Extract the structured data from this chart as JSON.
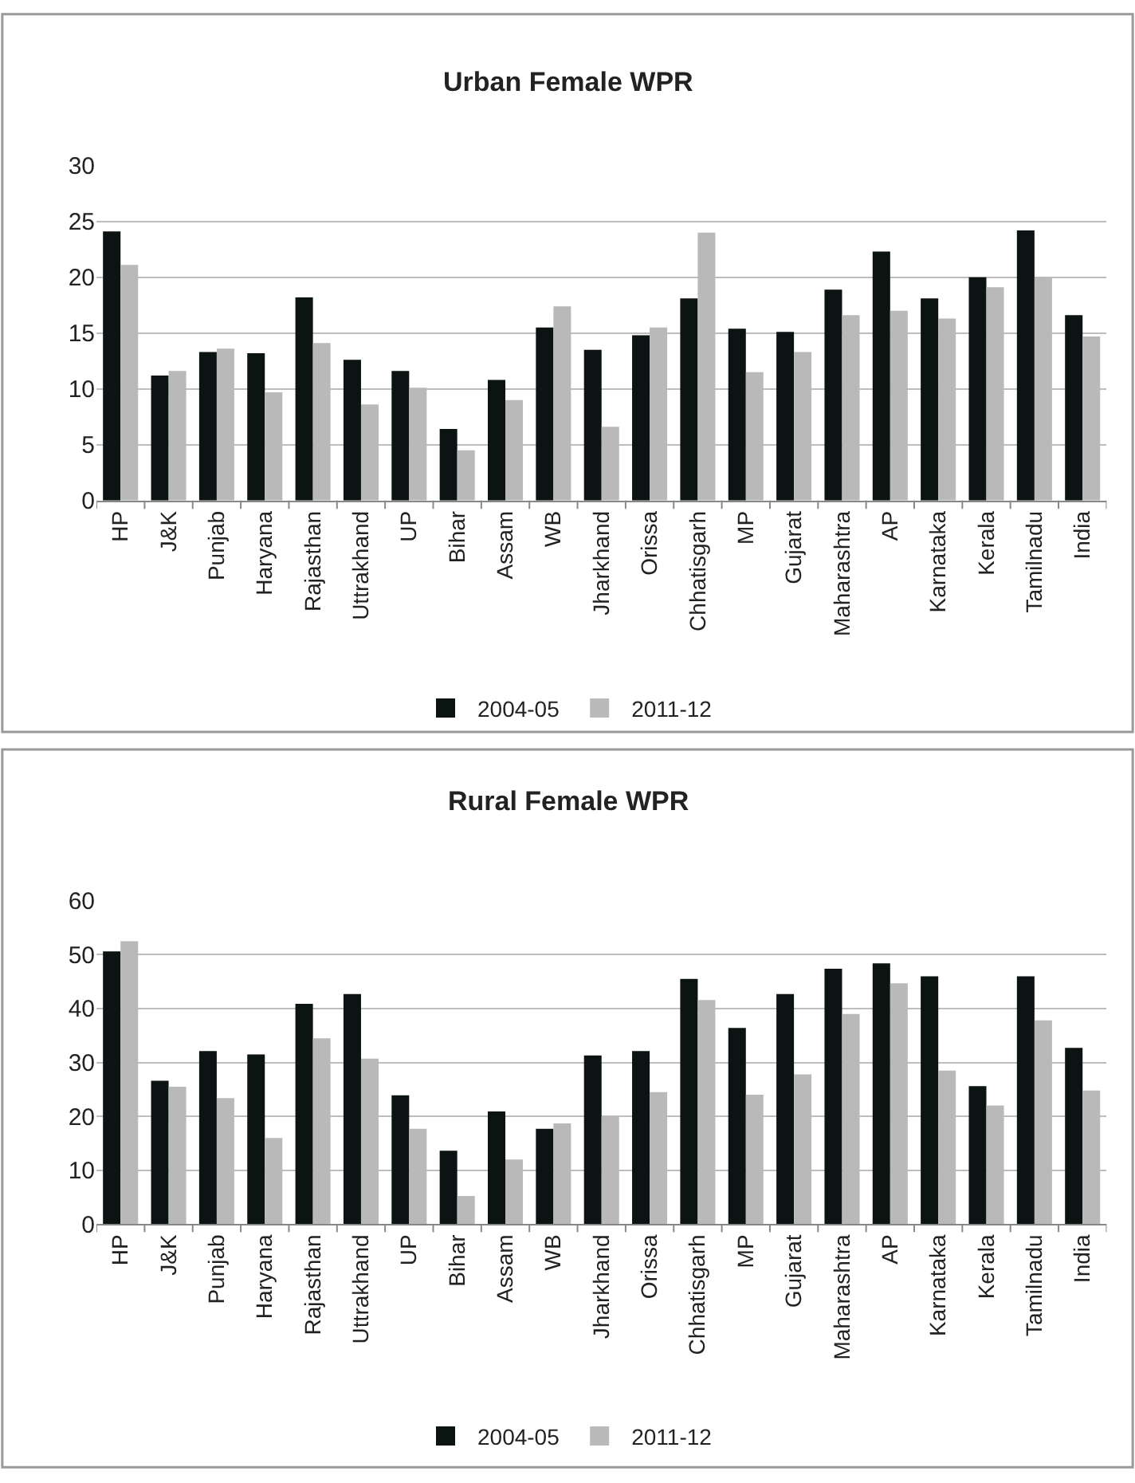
{
  "chart_data": [
    {
      "type": "bar",
      "title": "Urban Female WPR",
      "categories": [
        "HP",
        "J&K",
        "Punjab",
        "Haryana",
        "Rajasthan",
        "Uttrakhand",
        "UP",
        "Bihar",
        "Assam",
        "WB",
        "Jharkhand",
        "Orissa",
        "Chhatisgarh",
        "MP",
        "Gujarat",
        "Maharashtra",
        "AP",
        "Karnataka",
        "Kerala",
        "Tamilnadu",
        "India"
      ],
      "series": [
        {
          "name": "2004-05",
          "color": "#0b1412",
          "values": [
            24.1,
            11.2,
            13.3,
            13.2,
            18.2,
            12.6,
            11.6,
            6.4,
            10.8,
            15.5,
            13.5,
            14.8,
            18.1,
            15.4,
            15.1,
            18.9,
            22.3,
            18.1,
            20.0,
            24.2,
            16.6
          ]
        },
        {
          "name": "2011-12",
          "color": "#b9b9b9",
          "values": [
            21.1,
            11.6,
            13.6,
            9.7,
            14.1,
            8.6,
            10.1,
            4.5,
            9.0,
            17.4,
            6.6,
            15.5,
            24.0,
            11.5,
            13.3,
            16.6,
            17.0,
            16.3,
            19.1,
            20.0,
            14.7
          ]
        }
      ],
      "ylim": [
        0,
        30
      ],
      "yticks": [
        0,
        5,
        10,
        15,
        20,
        25,
        30
      ],
      "grid": "y",
      "legend": "bottom"
    },
    {
      "type": "bar",
      "title": "Rural Female WPR",
      "categories": [
        "HP",
        "J&K",
        "Punjab",
        "Haryana",
        "Rajasthan",
        "Uttrakhand",
        "UP",
        "Bihar",
        "Assam",
        "WB",
        "Jharkhand",
        "Orissa",
        "Chhatisgarh",
        "MP",
        "Gujarat",
        "Maharashtra",
        "AP",
        "Karnataka",
        "Kerala",
        "Tamilnadu",
        "India"
      ],
      "series": [
        {
          "name": "2004-05",
          "color": "#0b1412",
          "values": [
            50.6,
            26.6,
            32.1,
            31.5,
            40.9,
            42.7,
            23.9,
            13.6,
            20.9,
            17.7,
            31.3,
            32.1,
            45.5,
            36.4,
            42.7,
            47.4,
            48.4,
            46.0,
            25.6,
            46.0,
            32.7
          ]
        },
        {
          "name": "2011-12",
          "color": "#b9b9b9",
          "values": [
            52.5,
            25.5,
            23.4,
            16.0,
            34.5,
            30.7,
            17.7,
            5.2,
            12.0,
            18.7,
            20.0,
            24.5,
            41.6,
            24.0,
            27.8,
            39.0,
            44.7,
            28.5,
            22.0,
            37.8,
            24.8
          ]
        }
      ],
      "ylim": [
        0,
        60
      ],
      "yticks": [
        0,
        10,
        20,
        30,
        40,
        50,
        60
      ],
      "grid": "y",
      "legend": "bottom"
    }
  ]
}
